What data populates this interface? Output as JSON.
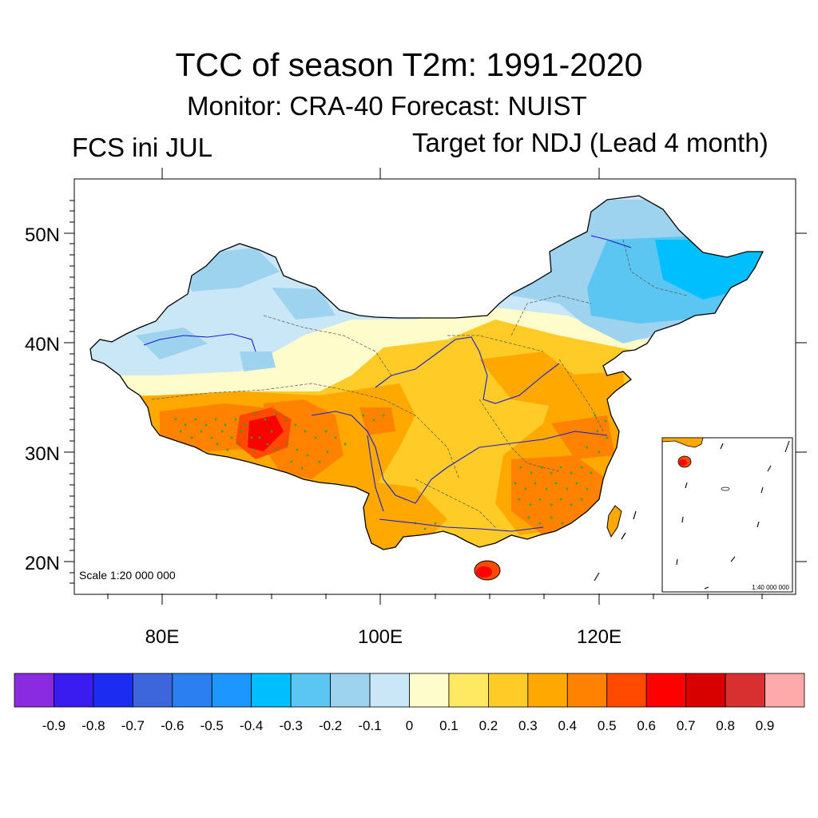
{
  "title": "TCC of season T2m: 1991-2020",
  "subtitle": "Monitor: CRA-40   Forecast: NUIST",
  "left_label": "FCS ini JUL",
  "right_label": "Target for NDJ (Lead 4 month)",
  "map": {
    "scale_label": "Scale 1:20 000 000",
    "inset_scale_label": "1:40 000 000",
    "lat_ticks": [
      "50N",
      "40N",
      "30N",
      "20N"
    ],
    "lon_ticks": [
      "80E",
      "100E",
      "120E"
    ],
    "lon_range": [
      72,
      138
    ],
    "lat_range": [
      17,
      55
    ]
  },
  "colorbar": {
    "colors": [
      "#8a2be2",
      "#3a1cf0",
      "#1c2cf0",
      "#3d66dc",
      "#2b7ff0",
      "#1e96ff",
      "#00bfff",
      "#5cc6f2",
      "#9dd3ee",
      "#c9e7f7",
      "#fffccb",
      "#ffe862",
      "#ffcb26",
      "#ffa800",
      "#ff8300",
      "#ff4a00",
      "#ff0000",
      "#d90000",
      "#d83030",
      "#ffaaaa"
    ],
    "labels": [
      "-0.9",
      "-0.8",
      "-0.7",
      "-0.6",
      "-0.5",
      "-0.4",
      "-0.3",
      "-0.2",
      "-0.1",
      "0",
      "0.1",
      "0.2",
      "0.3",
      "0.4",
      "0.5",
      "0.6",
      "0.7",
      "0.8",
      "0.9"
    ]
  },
  "colors": {
    "boundary": "#000000",
    "rivers": "#1a1adb",
    "significance_dots": "#22aa22"
  }
}
